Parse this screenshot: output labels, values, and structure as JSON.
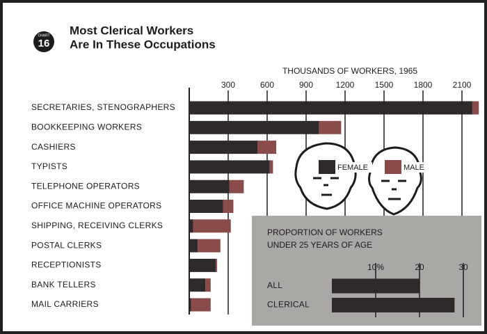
{
  "badge": {
    "label": "CHART",
    "number": "16"
  },
  "chart_data": [
    {
      "type": "bar",
      "orientation": "horizontal",
      "stacked": true,
      "title": [
        "Most Clerical Workers",
        "Are In These Occupations"
      ],
      "xlabel": "THOUSANDS OF WORKERS, 1965",
      "categories": [
        "SECRETARIES, STENOGRAPHERS",
        "BOOKKEEPING WORKERS",
        "CASHIERS",
        "TYPISTS",
        "TELEPHONE OPERATORS",
        "OFFICE MACHINE OPERATORS",
        "SHIPPING, RECEIVING CLERKS",
        "POSTAL CLERKS",
        "RECEPTIONISTS",
        "BANK TELLERS",
        "MAIL CARRIERS"
      ],
      "series": [
        {
          "name": "FEMALE",
          "color": "#2e2a2b",
          "values": [
            2180,
            1000,
            525,
            620,
            310,
            260,
            30,
            65,
            205,
            125,
            15
          ]
        },
        {
          "name": "MALE",
          "color": "#8a4c4a",
          "values": [
            50,
            170,
            145,
            25,
            110,
            80,
            290,
            175,
            10,
            40,
            150
          ]
        }
      ],
      "xlim": [
        0,
        2250
      ],
      "xticks": [
        300,
        600,
        900,
        1200,
        1500,
        1800,
        2100
      ],
      "grid": true
    },
    {
      "type": "bar",
      "orientation": "horizontal",
      "title": [
        "PROPORTION OF WORKERS",
        "UNDER 25 YEARS OF AGE"
      ],
      "categories": [
        "ALL",
        "CLERICAL"
      ],
      "values": [
        20,
        28
      ],
      "color": "#2e2a2b",
      "xlim": [
        0,
        32
      ],
      "xticks": [
        {
          "value": 10,
          "label": "10%"
        },
        20,
        30
      ],
      "grid": true
    }
  ]
}
